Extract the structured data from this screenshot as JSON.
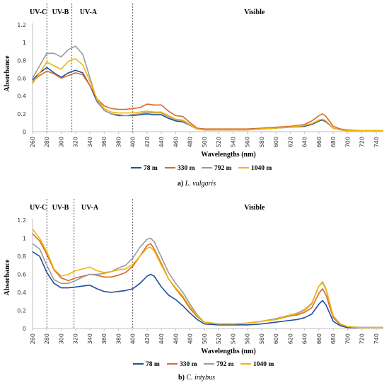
{
  "chart_data": [
    {
      "type": "line",
      "caption_label": "a)",
      "caption_species": "L. vulgaris",
      "xlabel": "Wavelengths (nm)",
      "ylabel": "Absorbance",
      "xlim": [
        260,
        750
      ],
      "ylim": [
        0,
        1.2
      ],
      "xticks": [
        "260",
        "280",
        "300",
        "320",
        "340",
        "360",
        "380",
        "400",
        "420",
        "440",
        "460",
        "480",
        "500",
        "520",
        "540",
        "560",
        "580",
        "600",
        "620",
        "640",
        "660",
        "680",
        "700",
        "720",
        "740"
      ],
      "yticks": [
        "0",
        "0.2",
        "0.4",
        "0.6",
        "0.8",
        "1",
        "1.2"
      ],
      "regions": [
        {
          "label": "UV-C",
          "x": 268
        },
        {
          "label": "UV-B",
          "x": 299
        },
        {
          "label": "UV-A",
          "x": 338
        },
        {
          "label": "Visible",
          "x": 570
        }
      ],
      "dividers": [
        280,
        315,
        400
      ],
      "grid": false,
      "legend_position": "bottom",
      "x": [
        260,
        270,
        280,
        290,
        300,
        310,
        320,
        330,
        340,
        350,
        360,
        370,
        380,
        390,
        400,
        410,
        420,
        430,
        440,
        450,
        460,
        470,
        480,
        490,
        500,
        520,
        540,
        560,
        580,
        600,
        620,
        640,
        650,
        660,
        665,
        670,
        680,
        690,
        700,
        720,
        740,
        750
      ],
      "series": [
        {
          "name": "78 m",
          "color": "#1f4e9c",
          "values": [
            0.58,
            0.66,
            0.72,
            0.66,
            0.61,
            0.66,
            0.69,
            0.66,
            0.52,
            0.34,
            0.24,
            0.2,
            0.18,
            0.18,
            0.18,
            0.19,
            0.2,
            0.19,
            0.19,
            0.15,
            0.12,
            0.11,
            0.07,
            0.03,
            0.02,
            0.02,
            0.02,
            0.02,
            0.03,
            0.04,
            0.05,
            0.06,
            0.08,
            0.12,
            0.13,
            0.11,
            0.04,
            0.02,
            0.01,
            0.01,
            0.01,
            0.01
          ]
        },
        {
          "name": "330 m",
          "color": "#d9692a",
          "values": [
            0.56,
            0.63,
            0.68,
            0.65,
            0.6,
            0.63,
            0.66,
            0.64,
            0.52,
            0.37,
            0.29,
            0.26,
            0.25,
            0.25,
            0.26,
            0.27,
            0.31,
            0.3,
            0.3,
            0.23,
            0.18,
            0.17,
            0.1,
            0.04,
            0.03,
            0.03,
            0.03,
            0.03,
            0.04,
            0.05,
            0.06,
            0.08,
            0.12,
            0.18,
            0.2,
            0.17,
            0.06,
            0.03,
            0.02,
            0.01,
            0.01,
            0.01
          ]
        },
        {
          "name": "792 m",
          "color": "#9a9a9a",
          "values": [
            0.6,
            0.74,
            0.88,
            0.88,
            0.84,
            0.92,
            0.96,
            0.87,
            0.61,
            0.35,
            0.24,
            0.2,
            0.19,
            0.18,
            0.19,
            0.2,
            0.22,
            0.21,
            0.21,
            0.17,
            0.13,
            0.12,
            0.07,
            0.03,
            0.02,
            0.02,
            0.02,
            0.02,
            0.03,
            0.04,
            0.05,
            0.07,
            0.09,
            0.13,
            0.14,
            0.12,
            0.04,
            0.02,
            0.01,
            0.01,
            0.01,
            0.01
          ]
        },
        {
          "name": "1040 m",
          "color": "#f2b705",
          "values": [
            0.54,
            0.66,
            0.78,
            0.74,
            0.7,
            0.79,
            0.82,
            0.75,
            0.57,
            0.37,
            0.26,
            0.22,
            0.21,
            0.21,
            0.21,
            0.22,
            0.23,
            0.22,
            0.22,
            0.18,
            0.14,
            0.13,
            0.08,
            0.03,
            0.02,
            0.02,
            0.02,
            0.02,
            0.03,
            0.04,
            0.05,
            0.07,
            0.09,
            0.13,
            0.14,
            0.12,
            0.04,
            0.02,
            0.01,
            0.01,
            0.01,
            0.01
          ]
        }
      ]
    },
    {
      "type": "line",
      "caption_label": "b)",
      "caption_species": "C. intybus",
      "xlabel": "Wavelengths (nm)",
      "ylabel": "Absorbance",
      "xlim": [
        260,
        750
      ],
      "ylim": [
        0,
        1.2
      ],
      "xticks": [
        "260",
        "280",
        "300",
        "320",
        "340",
        "360",
        "380",
        "400",
        "420",
        "440",
        "460",
        "480",
        "500",
        "520",
        "540",
        "560",
        "580",
        "600",
        "620",
        "640",
        "660",
        "680",
        "700",
        "720",
        "740"
      ],
      "yticks": [
        "0",
        "0.2",
        "0.4",
        "0.6",
        "0.8",
        "1",
        "1.2"
      ],
      "regions": [
        {
          "label": "UV-C",
          "x": 268
        },
        {
          "label": "UV-B",
          "x": 299
        },
        {
          "label": "UV-A",
          "x": 340
        },
        {
          "label": "Visible",
          "x": 570
        }
      ],
      "dividers": [
        280,
        318,
        400
      ],
      "grid": false,
      "legend_position": "bottom",
      "x": [
        260,
        270,
        280,
        290,
        300,
        310,
        320,
        330,
        340,
        350,
        360,
        370,
        380,
        390,
        400,
        410,
        420,
        425,
        430,
        440,
        450,
        460,
        470,
        480,
        490,
        500,
        520,
        540,
        560,
        580,
        600,
        620,
        630,
        640,
        650,
        660,
        665,
        670,
        680,
        690,
        700,
        720,
        740,
        750
      ],
      "series": [
        {
          "name": "78 m",
          "color": "#1f4e9c",
          "values": [
            0.85,
            0.8,
            0.62,
            0.5,
            0.45,
            0.45,
            0.46,
            0.47,
            0.48,
            0.44,
            0.41,
            0.4,
            0.41,
            0.42,
            0.44,
            0.5,
            0.58,
            0.6,
            0.58,
            0.46,
            0.37,
            0.32,
            0.25,
            0.17,
            0.1,
            0.05,
            0.04,
            0.04,
            0.04,
            0.05,
            0.07,
            0.09,
            0.1,
            0.12,
            0.16,
            0.27,
            0.31,
            0.26,
            0.08,
            0.03,
            0.01,
            0.01,
            0.01,
            0.01
          ]
        },
        {
          "name": "330 m",
          "color": "#d9692a",
          "values": [
            1.05,
            0.97,
            0.82,
            0.65,
            0.56,
            0.53,
            0.56,
            0.58,
            0.6,
            0.59,
            0.57,
            0.57,
            0.59,
            0.62,
            0.69,
            0.8,
            0.92,
            0.94,
            0.88,
            0.72,
            0.55,
            0.44,
            0.34,
            0.22,
            0.13,
            0.07,
            0.05,
            0.05,
            0.06,
            0.08,
            0.1,
            0.14,
            0.15,
            0.18,
            0.23,
            0.39,
            0.44,
            0.37,
            0.12,
            0.04,
            0.02,
            0.01,
            0.01,
            0.01
          ]
        },
        {
          "name": "792 m",
          "color": "#9a9a9a",
          "values": [
            0.94,
            0.88,
            0.7,
            0.54,
            0.5,
            0.5,
            0.53,
            0.57,
            0.6,
            0.6,
            0.61,
            0.63,
            0.67,
            0.7,
            0.78,
            0.9,
            0.99,
            1.0,
            0.96,
            0.79,
            0.62,
            0.5,
            0.4,
            0.27,
            0.15,
            0.07,
            0.05,
            0.05,
            0.06,
            0.08,
            0.11,
            0.15,
            0.17,
            0.21,
            0.28,
            0.47,
            0.51,
            0.43,
            0.14,
            0.05,
            0.02,
            0.01,
            0.01,
            0.01
          ]
        },
        {
          "name": "1040 m",
          "color": "#f2b705",
          "values": [
            1.1,
            1.0,
            0.85,
            0.66,
            0.58,
            0.6,
            0.64,
            0.66,
            0.68,
            0.64,
            0.62,
            0.63,
            0.65,
            0.66,
            0.71,
            0.8,
            0.89,
            0.9,
            0.86,
            0.7,
            0.55,
            0.45,
            0.36,
            0.24,
            0.14,
            0.07,
            0.05,
            0.05,
            0.06,
            0.08,
            0.1,
            0.15,
            0.16,
            0.2,
            0.27,
            0.47,
            0.52,
            0.44,
            0.14,
            0.05,
            0.02,
            0.01,
            0.01,
            0.01
          ]
        }
      ]
    }
  ]
}
